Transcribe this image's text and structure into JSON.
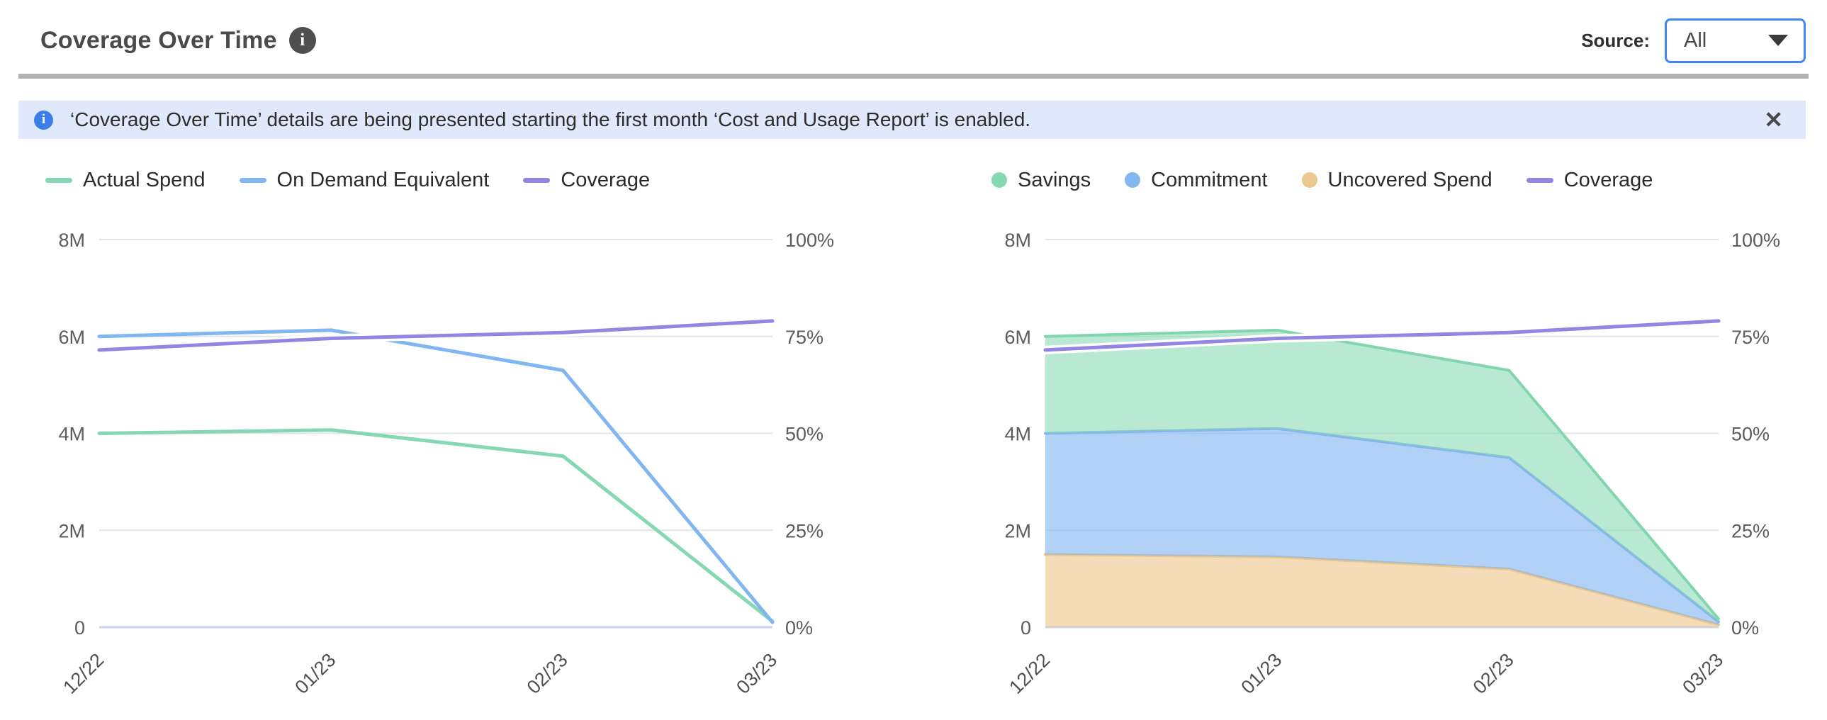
{
  "header": {
    "title": "Coverage Over Time",
    "info_glyph": "i",
    "source_label": "Source:",
    "source_value": "All"
  },
  "banner": {
    "info_glyph": "i",
    "text": "‘Coverage Over Time’ details are being presented starting the first month ‘Cost and Usage Report’ is enabled.",
    "close_glyph": "✕"
  },
  "colors": {
    "accent_blue_border": "#4285f4",
    "banner_bg": "#dfe9fb",
    "banner_icon_blue": "#3b7de9",
    "divider_gray": "#b2b2b2",
    "grid_gray": "#e4e4e8",
    "axis_zero_line": "#c9d5ec",
    "series_green": "#85d8b1",
    "series_blue": "#82b6f0",
    "series_purple": "#9186e2",
    "series_orange": "#ebc88f"
  },
  "chart_data": [
    {
      "id": "spend-coverage",
      "type": "line",
      "title": "",
      "x": [
        "12/22",
        "01/23",
        "02/23",
        "03/23"
      ],
      "x_spacing_days": [
        0,
        31,
        62,
        90
      ],
      "left_axis": {
        "ticks": [
          "8M",
          "6M",
          "4M",
          "2M",
          "0"
        ],
        "max_millions": 8,
        "min": 0,
        "unit": "millions"
      },
      "right_axis": {
        "ticks": [
          "100%",
          "75%",
          "50%",
          "25%",
          "0%"
        ],
        "max_percent": 100,
        "min": 0,
        "unit": "percent"
      },
      "grid": "horizontal",
      "legend_position": "top",
      "legend": [
        {
          "label": "Actual Spend",
          "marker": "line",
          "color": "#85d8b1"
        },
        {
          "label": "On Demand Equivalent",
          "marker": "line",
          "color": "#82b6f0"
        },
        {
          "label": "Coverage",
          "marker": "line",
          "color": "#9186e2"
        }
      ],
      "series": [
        {
          "name": "Actual Spend",
          "kind": "line",
          "axis": "left",
          "color": "#85d8b1",
          "values_millions": [
            4.0,
            4.07,
            3.53,
            0.12
          ]
        },
        {
          "name": "On Demand Equivalent",
          "kind": "line",
          "axis": "left",
          "color": "#82b6f0",
          "values_millions": [
            6.0,
            6.13,
            5.3,
            0.1
          ]
        },
        {
          "name": "Coverage",
          "kind": "line",
          "axis": "right",
          "color": "#9186e2",
          "white_halo": true,
          "values_percent": [
            71.5,
            74.5,
            76,
            79
          ]
        }
      ]
    },
    {
      "id": "savings-breakdown",
      "type": "area",
      "title": "",
      "x": [
        "12/22",
        "01/23",
        "02/23",
        "03/23"
      ],
      "x_spacing_days": [
        0,
        31,
        62,
        90
      ],
      "left_axis": {
        "ticks": [
          "8M",
          "6M",
          "4M",
          "2M",
          "0"
        ],
        "max_millions": 8,
        "min": 0,
        "unit": "millions"
      },
      "right_axis": {
        "ticks": [
          "100%",
          "75%",
          "50%",
          "25%",
          "0%"
        ],
        "max_percent": 100,
        "min": 0,
        "unit": "percent"
      },
      "grid": "horizontal",
      "legend_position": "top",
      "stacked": true,
      "legend": [
        {
          "label": "Savings",
          "marker": "dot",
          "color": "#85d8b1"
        },
        {
          "label": "Commitment",
          "marker": "dot",
          "color": "#85b7f0"
        },
        {
          "label": "Uncovered Spend",
          "marker": "dot",
          "color": "#ebc88f"
        },
        {
          "label": "Coverage",
          "marker": "line",
          "color": "#9186e2"
        }
      ],
      "series": [
        {
          "name": "Uncovered Spend",
          "kind": "area",
          "axis": "left",
          "color": "#e9c78d",
          "fill": "rgba(235,199,139,0.62)",
          "values_millions": [
            1.5,
            1.45,
            1.2,
            0.05
          ]
        },
        {
          "name": "Commitment",
          "kind": "area",
          "axis": "left",
          "color": "#84b5ef",
          "fill": "rgba(130,180,240,0.62)",
          "values_millions": [
            2.5,
            2.65,
            2.3,
            0.06
          ]
        },
        {
          "name": "Savings",
          "kind": "area",
          "axis": "left",
          "color": "#82d6ae",
          "fill": "rgba(132,215,176,0.56)",
          "values_millions": [
            2.0,
            2.03,
            1.8,
            0.06
          ]
        },
        {
          "name": "Coverage",
          "kind": "line",
          "axis": "right",
          "color": "#9186e2",
          "white_halo": true,
          "values_percent": [
            71.5,
            74.5,
            76,
            79
          ]
        }
      ]
    }
  ]
}
